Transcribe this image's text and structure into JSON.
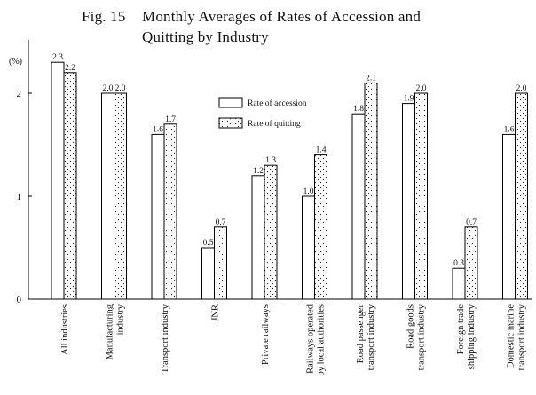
{
  "figure": {
    "label": "Fig. 15",
    "title_line1": "Monthly Averages of Rates of Accession and",
    "title_line2": "Quitting by Industry"
  },
  "chart_data": {
    "type": "bar",
    "title": "Monthly Averages of Rates of Accession and Quitting by Industry",
    "ylabel": "(%)",
    "ylim": [
      0,
      2.5
    ],
    "yticks": [
      "0",
      "1",
      "2"
    ],
    "grid": false,
    "legend_position": "top-center",
    "categories": [
      [
        "All industries"
      ],
      [
        "Manufacturing",
        "industry"
      ],
      [
        "Transport industry"
      ],
      [
        "JNR"
      ],
      [
        "Private railways"
      ],
      [
        "Railways operated",
        "by local authorities"
      ],
      [
        "Road passenger",
        "transport industry"
      ],
      [
        "Road goods",
        "transport industry"
      ],
      [
        "Foreign trade",
        "shipping industry"
      ],
      [
        "Domestic marine",
        "transport industry"
      ]
    ],
    "series": [
      {
        "name": "Rate of accession",
        "fill": "plain",
        "values": [
          2.3,
          2.0,
          1.6,
          0.5,
          1.2,
          1.0,
          1.8,
          1.9,
          0.3,
          1.6
        ],
        "labels": [
          "2.3",
          "2.0",
          "1.6",
          "0.5",
          "1.2",
          "1.0",
          "1.8",
          "1.9",
          "0.3",
          "1.6"
        ]
      },
      {
        "name": "Rate of quitting",
        "fill": "dotted",
        "values": [
          2.2,
          2.0,
          1.7,
          0.7,
          1.3,
          1.4,
          2.1,
          2.0,
          0.7,
          2.0
        ],
        "labels": [
          "2.2",
          "2.0",
          "1.7",
          "0.7",
          "1.3",
          "1.4",
          "2.1",
          "2.0",
          "0.7",
          "2.0"
        ]
      }
    ]
  }
}
